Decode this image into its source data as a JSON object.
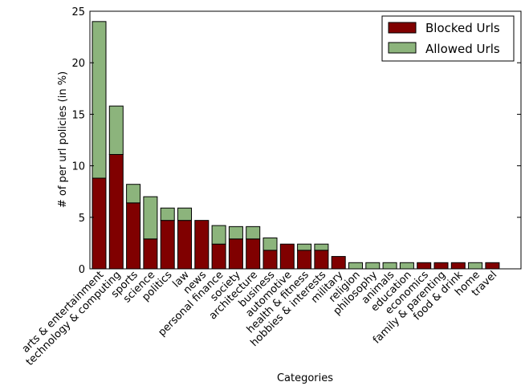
{
  "chart_data": {
    "type": "bar",
    "stacked": true,
    "xlabel": "Categories",
    "ylabel": "# of per url policies (in %)",
    "ylim": [
      0,
      25
    ],
    "yticks": [
      0,
      5,
      10,
      15,
      20,
      25
    ],
    "grid": false,
    "legend_position": "top-right",
    "categories": [
      "arts & entertainment",
      "technology & computing",
      "sports",
      "science",
      "politics",
      "law",
      "news",
      "personal finance",
      "society",
      "architecture",
      "business",
      "automotive",
      "health & fitness",
      "hobbies & interests",
      "military",
      "religion",
      "philosophy",
      "animals",
      "education",
      "economics",
      "family & parenting",
      "food & drink",
      "home",
      "travel"
    ],
    "series": [
      {
        "name": "Blocked Urls",
        "color": "#800000",
        "values": [
          8.8,
          11.1,
          6.4,
          2.9,
          4.7,
          4.7,
          4.7,
          2.4,
          2.9,
          2.9,
          1.8,
          2.4,
          1.8,
          1.8,
          1.2,
          0,
          0,
          0,
          0,
          0.6,
          0.6,
          0.6,
          0,
          0.6
        ]
      },
      {
        "name": "Allowed Urls",
        "color": "#8cb47c",
        "values": [
          15.2,
          4.7,
          1.8,
          4.1,
          1.2,
          1.2,
          0,
          1.8,
          1.2,
          1.2,
          1.2,
          0,
          0.6,
          0.6,
          0,
          0.6,
          0.6,
          0.6,
          0.6,
          0,
          0,
          0,
          0.6,
          0
        ]
      }
    ]
  }
}
